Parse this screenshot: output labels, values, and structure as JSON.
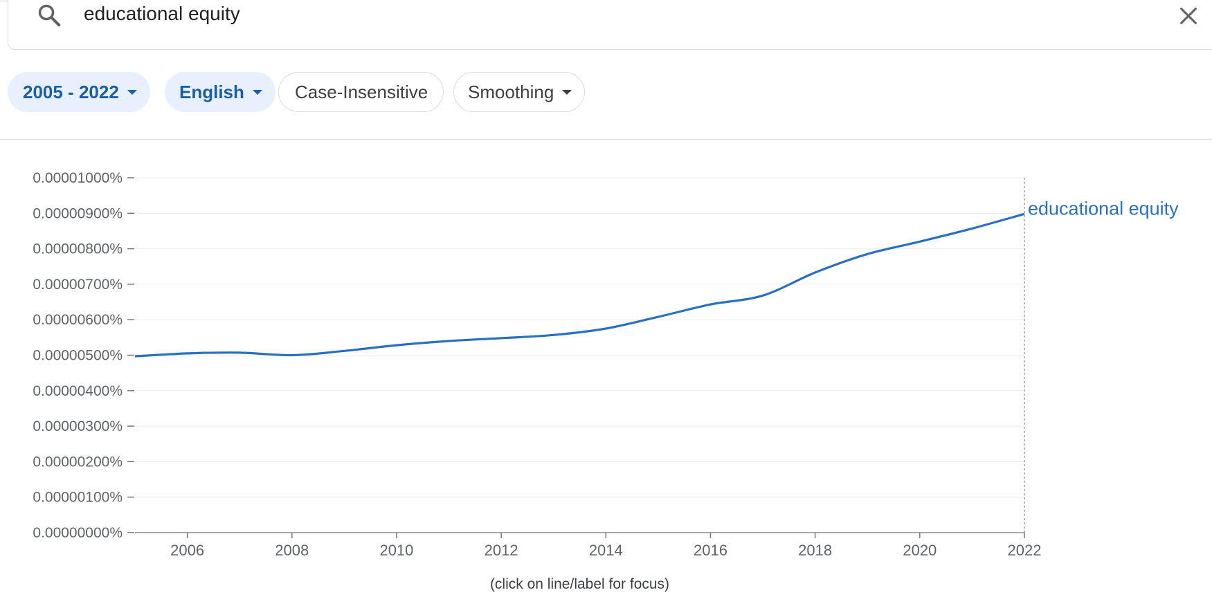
{
  "search": {
    "query": "educational equity",
    "search_icon": "search-icon",
    "clear_icon": "close-icon"
  },
  "filters": [
    {
      "label": "2005 - 2022",
      "dropdown": true,
      "active": true
    },
    {
      "label": "English",
      "dropdown": true,
      "active": true
    },
    {
      "label": "Case-Insensitive",
      "dropdown": false,
      "active": false
    },
    {
      "label": "Smoothing",
      "dropdown": true,
      "active": false
    }
  ],
  "colors": {
    "accent": "#1a5ea8",
    "chip_active_bg": "#e8f0fe",
    "series": "#2970c2"
  },
  "chart_data": {
    "type": "line",
    "title": "",
    "xlabel": "",
    "ylabel": "",
    "xlim": [
      2005,
      2022
    ],
    "ylim": [
      0,
      1e-05
    ],
    "y_tick_labels": [
      "0.00000000%",
      "0.00000100%",
      "0.00000200%",
      "0.00000300%",
      "0.00000400%",
      "0.00000500%",
      "0.00000600%",
      "0.00000700%",
      "0.00000800%",
      "0.00000900%",
      "0.00001000%"
    ],
    "x_tick_labels": [
      "2006",
      "2008",
      "2010",
      "2012",
      "2014",
      "2016",
      "2018",
      "2020",
      "2022"
    ],
    "grid": true,
    "legend": "inline label at line end",
    "series": [
      {
        "name": "educational equity",
        "x": [
          2005,
          2006,
          2007,
          2008,
          2009,
          2010,
          2011,
          2012,
          2013,
          2014,
          2015,
          2016,
          2017,
          2018,
          2019,
          2020,
          2021,
          2022
        ],
        "values": [
          4.97e-06,
          5.05e-06,
          5.07e-06,
          5e-06,
          5.12e-06,
          5.28e-06,
          5.4e-06,
          5.48e-06,
          5.57e-06,
          5.75e-06,
          6.08e-06,
          6.43e-06,
          6.68e-06,
          7.33e-06,
          7.85e-06,
          8.2e-06,
          8.57e-06,
          8.98e-06
        ]
      }
    ],
    "footnote": "(click on line/label for focus)"
  }
}
